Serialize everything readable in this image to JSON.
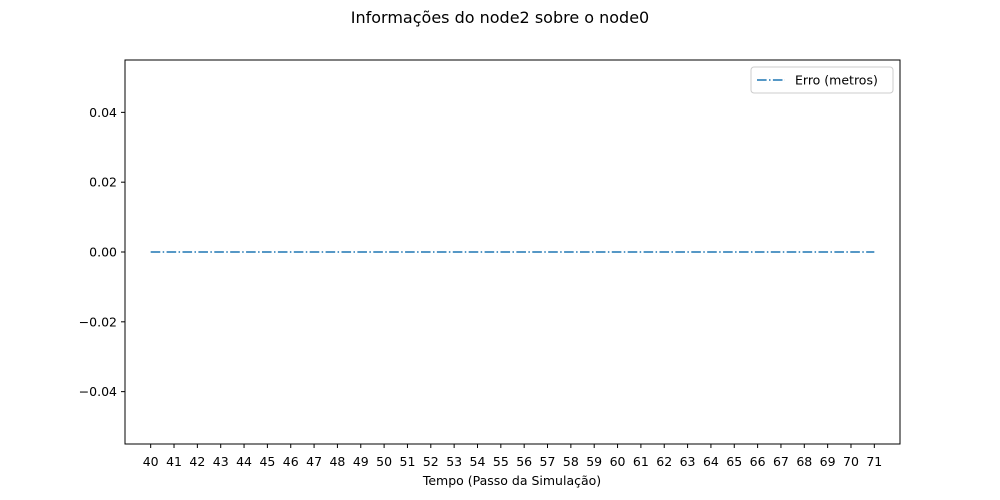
{
  "chart_data": {
    "type": "line",
    "title": "Informações do node2 sobre o node0",
    "xlabel": "Tempo (Passo da Simulação)",
    "ylabel": "",
    "x": [
      40,
      41,
      42,
      43,
      44,
      45,
      46,
      47,
      48,
      49,
      50,
      51,
      52,
      53,
      54,
      55,
      56,
      57,
      58,
      59,
      60,
      61,
      62,
      63,
      64,
      65,
      66,
      67,
      68,
      69,
      70,
      71
    ],
    "xlim": [
      38.9,
      72.1
    ],
    "ylim": [
      -0.055,
      0.055
    ],
    "yticks": [
      -0.04,
      -0.02,
      0.0,
      0.02,
      0.04
    ],
    "ytick_labels": [
      "−0.04",
      "−0.02",
      "0.00",
      "0.02",
      "0.04"
    ],
    "grid": false,
    "legend_position": "top-right",
    "series": [
      {
        "name": "Erro (metros)",
        "color": "#1f77b4",
        "linestyle": "dashdot",
        "values": [
          0,
          0,
          0,
          0,
          0,
          0,
          0,
          0,
          0,
          0,
          0,
          0,
          0,
          0,
          0,
          0,
          0,
          0,
          0,
          0,
          0,
          0,
          0,
          0,
          0,
          0,
          0,
          0,
          0,
          0,
          0,
          0
        ]
      }
    ]
  }
}
